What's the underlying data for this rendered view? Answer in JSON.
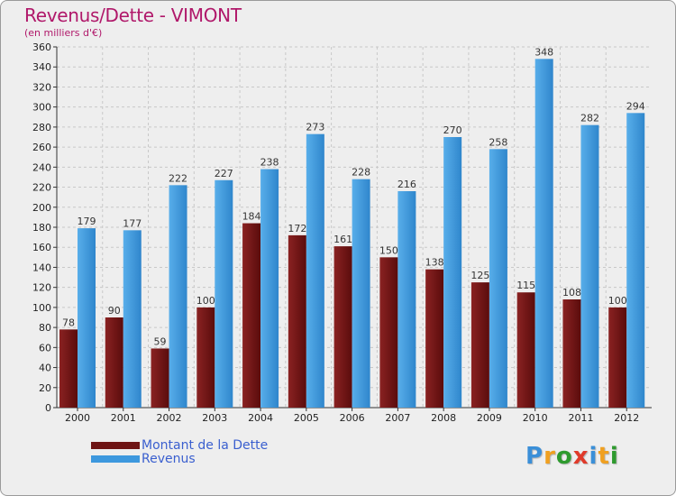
{
  "header": {
    "title": "Revenus/Dette - VIMONT",
    "subtitle": "(en milliers d'€)"
  },
  "legend": {
    "items": [
      {
        "label": "Montant de la Dette",
        "color": "#6e1414"
      },
      {
        "label": "Revenus",
        "color": "#3d98de"
      }
    ]
  },
  "logo": {
    "letters": [
      {
        "ch": "P",
        "color": "#3a8fd8"
      },
      {
        "ch": "r",
        "color": "#f0a020"
      },
      {
        "ch": "o",
        "color": "#2e9a2e"
      },
      {
        "ch": "x",
        "color": "#e03a2a"
      },
      {
        "ch": "i",
        "color": "#3a8fd8"
      },
      {
        "ch": "t",
        "color": "#f0a020"
      },
      {
        "ch": "i",
        "color": "#2e9a2e"
      }
    ]
  },
  "chart_data": {
    "type": "bar",
    "title": "Revenus/Dette - VIMONT",
    "subtitle": "(en milliers d'€)",
    "categories": [
      "2000",
      "2001",
      "2002",
      "2003",
      "2004",
      "2005",
      "2006",
      "2007",
      "2008",
      "2009",
      "2010",
      "2011",
      "2012"
    ],
    "series": [
      {
        "name": "Montant de la Dette",
        "color": "#6e1414",
        "values": [
          78,
          90,
          59,
          100,
          184,
          172,
          161,
          150,
          138,
          125,
          115,
          108,
          100
        ]
      },
      {
        "name": "Revenus",
        "color": "#3d98de",
        "values": [
          179,
          177,
          222,
          227,
          238,
          273,
          228,
          216,
          270,
          258,
          348,
          282,
          294
        ]
      }
    ],
    "ylim": [
      0,
      360
    ],
    "ytick_step": 20,
    "grid": true,
    "legend_position": "bottom-left"
  }
}
